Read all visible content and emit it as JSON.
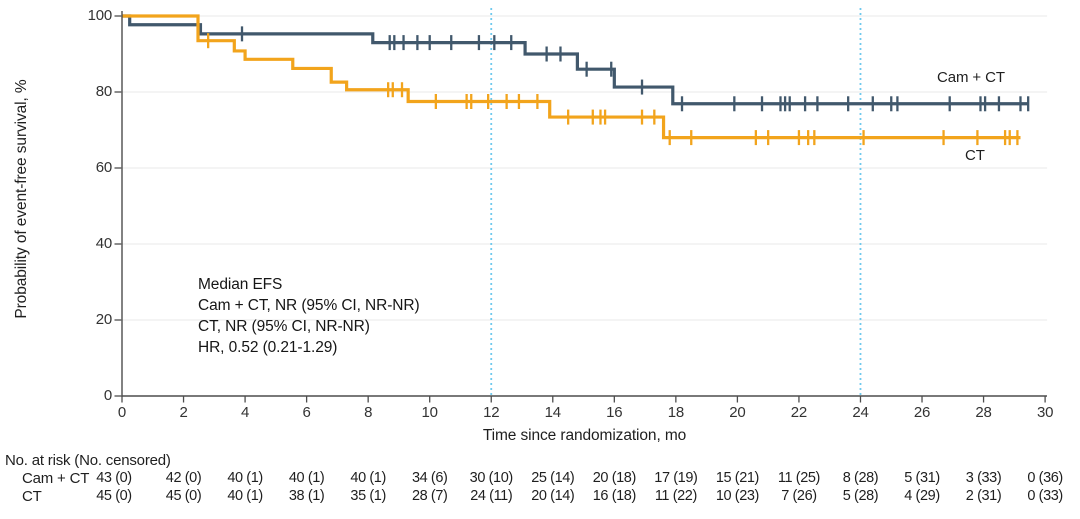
{
  "figure": {
    "y_axis": {
      "label": "Probability of event-free survival, %",
      "ticks": [
        0,
        20,
        40,
        60,
        80,
        100
      ],
      "min": 0,
      "max": 100
    },
    "x_axis": {
      "label": "Time since randomization, mo",
      "ticks": [
        0,
        2,
        4,
        6,
        8,
        10,
        12,
        14,
        16,
        18,
        20,
        22,
        24,
        26,
        28,
        30
      ],
      "min": 0,
      "max": 30
    },
    "reference_lines": {
      "months": [
        12,
        24
      ],
      "color": "#6FC9EE",
      "style": "dotted"
    },
    "annotation": {
      "lines": [
        "Median EFS",
        "Cam + CT, NR (95% CI, NR-NR)",
        "CT, NR (95% CI, NR-NR)",
        "HR, 0.52 (0.21-1.29)"
      ]
    },
    "colors": {
      "cam_ct": "#41586C",
      "ct": "#F2A41C",
      "reference": "#6FC9EE",
      "grid": "#E8E8E8",
      "axis": "#4D4D4D",
      "text": "#1F1F1F"
    }
  },
  "chart_data": {
    "type": "line",
    "subtype": "kaplan-meier-step",
    "title": "",
    "xlabel": "Time since randomization, mo",
    "ylabel": "Probability of event-free survival, %",
    "xlim": [
      0,
      30
    ],
    "ylim": [
      0,
      100
    ],
    "grid": "horizontal",
    "legend_position": "on-curve-right",
    "series": [
      {
        "name": "Cam + CT",
        "color": "#41586C",
        "end_month": 29.45,
        "steps": [
          [
            0,
            100
          ],
          [
            0.25,
            97.7
          ],
          [
            2.55,
            95.3
          ],
          [
            8.15,
            93
          ],
          [
            13.1,
            90
          ],
          [
            14.8,
            86
          ],
          [
            16,
            81.3
          ],
          [
            17.9,
            76.9
          ]
        ],
        "censors": [
          [
            3.9,
            95.3
          ],
          [
            8.7,
            93
          ],
          [
            8.85,
            93
          ],
          [
            9.15,
            93
          ],
          [
            9.6,
            93
          ],
          [
            10,
            93
          ],
          [
            10.7,
            93
          ],
          [
            11.6,
            93
          ],
          [
            12.1,
            93
          ],
          [
            12.65,
            93
          ],
          [
            13.8,
            90
          ],
          [
            14.25,
            90
          ],
          [
            15.1,
            86
          ],
          [
            15.9,
            86
          ],
          [
            16.9,
            81.3
          ],
          [
            18.2,
            76.9
          ],
          [
            19.9,
            76.9
          ],
          [
            20.8,
            76.9
          ],
          [
            21.4,
            76.9
          ],
          [
            21.55,
            76.9
          ],
          [
            21.7,
            76.9
          ],
          [
            22.2,
            76.9
          ],
          [
            22.6,
            76.9
          ],
          [
            23.6,
            76.9
          ],
          [
            24.4,
            76.9
          ],
          [
            25,
            76.9
          ],
          [
            25.2,
            76.9
          ],
          [
            26.9,
            76.9
          ],
          [
            27.9,
            76.9
          ],
          [
            28.05,
            76.9
          ],
          [
            28.5,
            76.9
          ],
          [
            29.2,
            76.9
          ],
          [
            29.45,
            76.9
          ]
        ]
      },
      {
        "name": "CT",
        "color": "#F2A41C",
        "end_month": 29.2,
        "steps": [
          [
            0,
            100
          ],
          [
            2.47,
            93.5
          ],
          [
            3.65,
            90.8
          ],
          [
            4,
            88.6
          ],
          [
            5.55,
            86.2
          ],
          [
            6.8,
            82.6
          ],
          [
            7.3,
            80.6
          ],
          [
            9.3,
            77.5
          ],
          [
            13.9,
            73.4
          ],
          [
            17.6,
            68
          ]
        ],
        "censors": [
          [
            2.8,
            93.5
          ],
          [
            8.65,
            80.6
          ],
          [
            8.8,
            80.6
          ],
          [
            9.1,
            80.6
          ],
          [
            10.2,
            77.5
          ],
          [
            11.2,
            77.5
          ],
          [
            11.35,
            77.5
          ],
          [
            11.9,
            77.5
          ],
          [
            12.5,
            77.5
          ],
          [
            12.9,
            77.5
          ],
          [
            13.5,
            77.5
          ],
          [
            14.5,
            73.4
          ],
          [
            15.3,
            73.4
          ],
          [
            15.55,
            73.4
          ],
          [
            15.7,
            73.4
          ],
          [
            16.9,
            73.4
          ],
          [
            17.3,
            73.4
          ],
          [
            17.8,
            68
          ],
          [
            18.5,
            68
          ],
          [
            20.6,
            68
          ],
          [
            21,
            68
          ],
          [
            22,
            68
          ],
          [
            22.3,
            68
          ],
          [
            22.5,
            68
          ],
          [
            24.1,
            68
          ],
          [
            26.7,
            68
          ],
          [
            27.8,
            68
          ],
          [
            28.7,
            68
          ],
          [
            28.85,
            68
          ],
          [
            29.1,
            68
          ]
        ]
      }
    ]
  },
  "risk_table": {
    "header": "No. at risk (No. censored)",
    "time_points": [
      0,
      2,
      4,
      6,
      8,
      10,
      12,
      14,
      16,
      18,
      20,
      22,
      24,
      26,
      28,
      30
    ],
    "rows": [
      {
        "label": "Cam + CT",
        "values": [
          "43 (0)",
          "42 (0)",
          "40 (1)",
          "40 (1)",
          "40 (1)",
          "34 (6)",
          "30 (10)",
          "25 (14)",
          "20 (18)",
          "17 (19)",
          "15 (21)",
          "11 (25)",
          "8 (28)",
          "5 (31)",
          "3 (33)",
          "0 (36)"
        ]
      },
      {
        "label": "CT",
        "values": [
          "45 (0)",
          "45 (0)",
          "40 (1)",
          "38 (1)",
          "35 (1)",
          "28 (7)",
          "24 (11)",
          "20 (14)",
          "16 (18)",
          "11 (22)",
          "10 (23)",
          "7 (26)",
          "5 (28)",
          "4 (29)",
          "2 (31)",
          "0 (33)"
        ]
      }
    ]
  }
}
